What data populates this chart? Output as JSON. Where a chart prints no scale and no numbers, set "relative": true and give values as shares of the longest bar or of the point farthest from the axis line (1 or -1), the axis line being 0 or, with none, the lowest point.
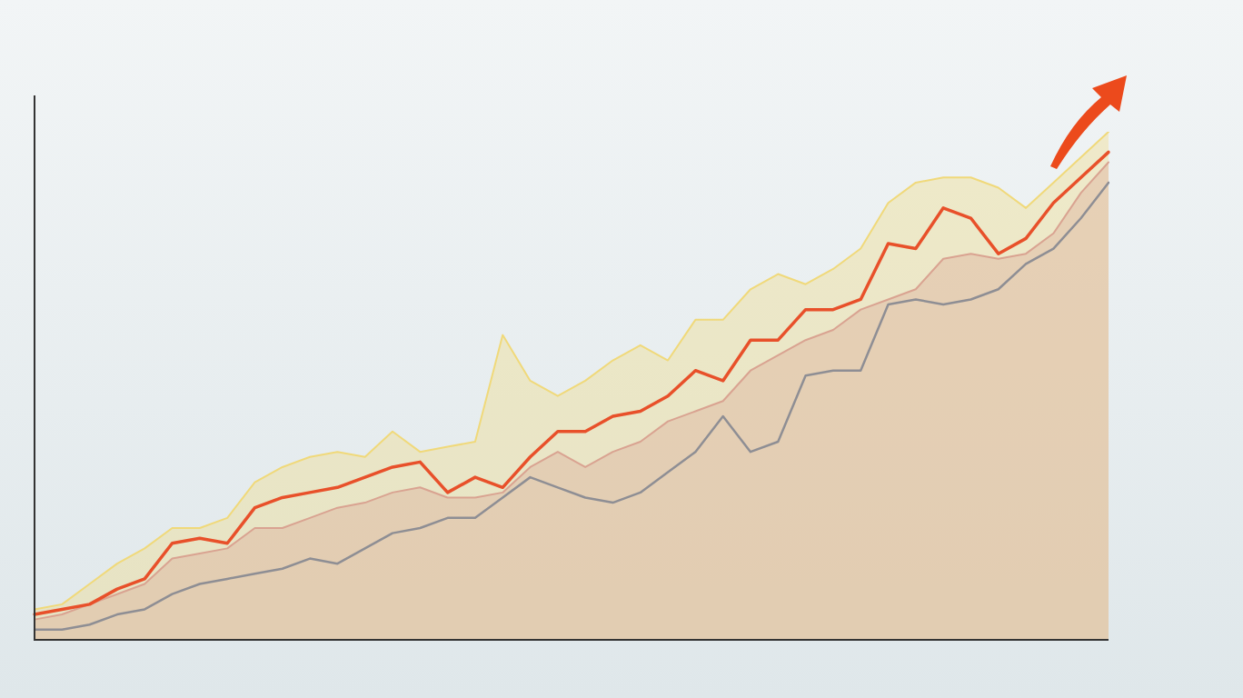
{
  "chart_data": {
    "type": "area",
    "relative": true,
    "legend": false,
    "grid": false,
    "categories": [
      null,
      null,
      null,
      null,
      null,
      null,
      null,
      null,
      null,
      null,
      null,
      null,
      null,
      null,
      null,
      null,
      null,
      null,
      null,
      null,
      null,
      null,
      null,
      null,
      null,
      null,
      null,
      null,
      null,
      null,
      null,
      null,
      null,
      null,
      null,
      null,
      null,
      null,
      null,
      null
    ],
    "series": [
      {
        "type": "area",
        "color": "#f0d97a",
        "values": [
          0.06,
          0.07,
          0.11,
          0.15,
          0.18,
          0.22,
          0.22,
          0.24,
          0.31,
          0.34,
          0.36,
          0.37,
          0.36,
          0.41,
          0.37,
          0.38,
          0.39,
          0.6,
          0.51,
          0.48,
          0.51,
          0.55,
          0.58,
          0.55,
          0.63,
          0.63,
          0.69,
          0.72,
          0.7,
          0.73,
          0.77,
          0.86,
          0.9,
          0.91,
          0.91,
          0.89,
          0.85,
          0.9,
          0.95,
          1
        ]
      },
      {
        "type": "area",
        "color": "#d9a391",
        "values": [
          0.04,
          0.05,
          0.07,
          0.09,
          0.11,
          0.16,
          0.17,
          0.18,
          0.22,
          0.22,
          0.24,
          0.26,
          0.27,
          0.29,
          0.3,
          0.28,
          0.28,
          0.29,
          0.34,
          0.37,
          0.34,
          0.37,
          0.39,
          0.43,
          0.45,
          0.47,
          0.53,
          0.56,
          0.59,
          0.61,
          0.65,
          0.67,
          0.69,
          0.75,
          0.76,
          0.75,
          0.76,
          0.8,
          0.88,
          0.94
        ]
      },
      {
        "type": "line",
        "color": "#8e8e94",
        "values": [
          0.02,
          0.02,
          0.03,
          0.05,
          0.06,
          0.09,
          0.11,
          0.12,
          0.13,
          0.14,
          0.16,
          0.15,
          0.18,
          0.21,
          0.22,
          0.24,
          0.24,
          0.28,
          0.32,
          0.3,
          0.28,
          0.27,
          0.29,
          0.33,
          0.37,
          0.44,
          0.37,
          0.39,
          0.52,
          0.53,
          0.53,
          0.66,
          0.67,
          0.66,
          0.67,
          0.69,
          0.74,
          0.77,
          0.83,
          0.9
        ]
      },
      {
        "type": "line",
        "color": "#e8502a",
        "values": [
          0.05,
          0.06,
          0.07,
          0.1,
          0.12,
          0.19,
          0.2,
          0.19,
          0.26,
          0.28,
          0.29,
          0.3,
          0.32,
          0.34,
          0.35,
          0.29,
          0.32,
          0.3,
          0.36,
          0.41,
          0.41,
          0.44,
          0.45,
          0.48,
          0.53,
          0.51,
          0.59,
          0.59,
          0.65,
          0.65,
          0.67,
          0.78,
          0.77,
          0.85,
          0.83,
          0.76,
          0.79,
          0.86,
          0.91,
          0.96
        ]
      }
    ]
  }
}
